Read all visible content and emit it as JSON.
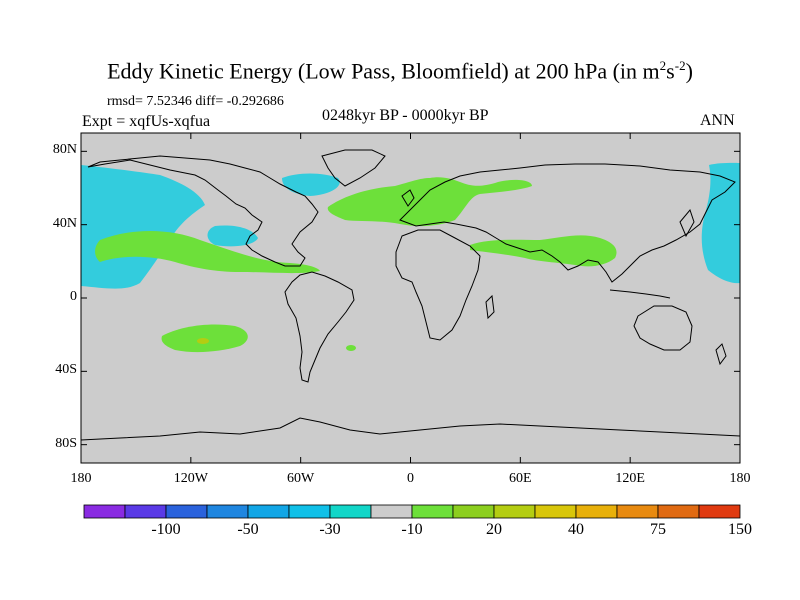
{
  "title": {
    "main": "Eddy Kinetic Energy (Low Pass, Bloomfield) at 200 hPa (in m",
    "sup1": "2",
    "mid": "s",
    "sup2": "-2",
    "end": ")"
  },
  "stats": "rmsd= 7.52346 diff= -0.292686",
  "experiment": "Expt = xqfUs-xqfua",
  "period": "0248kyr BP - 0000kyr BP",
  "season": "ANN",
  "axes": {
    "lat_labels": [
      {
        "text": "80N",
        "lat": 80
      },
      {
        "text": "40N",
        "lat": 40
      },
      {
        "text": "0",
        "lat": 0
      },
      {
        "text": "40S",
        "lat": -40
      },
      {
        "text": "80S",
        "lat": -80
      }
    ],
    "lon_labels": [
      {
        "text": "180",
        "lon": -180
      },
      {
        "text": "120W",
        "lon": -120
      },
      {
        "text": "60W",
        "lon": -60
      },
      {
        "text": "0",
        "lon": 0
      },
      {
        "text": "60E",
        "lon": 60
      },
      {
        "text": "120E",
        "lon": 120
      },
      {
        "text": "180",
        "lon": 180
      }
    ]
  },
  "colorbar": {
    "colors": [
      "#8a2be2",
      "#5a3ae6",
      "#2a62dc",
      "#1f86e0",
      "#12a6e6",
      "#10c0e8",
      "#12d6c8",
      "#cccccc",
      "#6de03a",
      "#8ccf1f",
      "#b4cd12",
      "#d8c60a",
      "#e8b00a",
      "#e88a10",
      "#e06a12",
      "#e03a10"
    ],
    "labels": [
      {
        "text": "-100",
        "index": 2
      },
      {
        "text": "-50",
        "index": 4
      },
      {
        "text": "-30",
        "index": 6
      },
      {
        "text": "-10",
        "index": 8
      },
      {
        "text": "20",
        "index": 10
      },
      {
        "text": "40",
        "index": 12
      },
      {
        "text": "75",
        "index": 14
      },
      {
        "text": "150",
        "index": 16
      }
    ]
  },
  "map_colors": {
    "background": "#cccccc",
    "positive": "#6de03a",
    "negative": "#33ccdd",
    "coast": "#000000"
  }
}
